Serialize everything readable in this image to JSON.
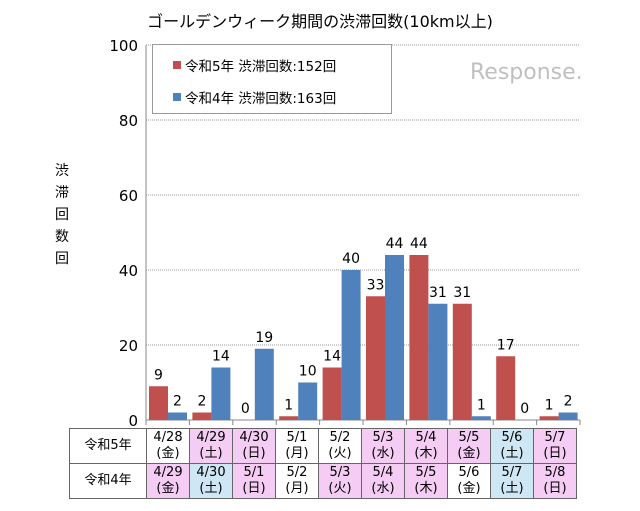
{
  "chart_data": {
    "type": "bar",
    "title": "ゴールデンウィーク期間の渋滞回数(10km以上)",
    "ylabel": "渋滞回数 回",
    "ylim": [
      0,
      100
    ],
    "yticks": [
      0,
      20,
      40,
      60,
      80,
      100
    ],
    "grid": true,
    "legend_position": "top-left",
    "series": [
      {
        "name": "令和5年 渋滞回数:152回",
        "color": "#c0504d",
        "row_label": "令和5年",
        "dates": [
          "4/28",
          "4/29",
          "4/30",
          "5/1",
          "5/2",
          "5/3",
          "5/4",
          "5/5",
          "5/6",
          "5/7"
        ],
        "weekdays": [
          "(金)",
          "(土)",
          "(日)",
          "(月)",
          "(火)",
          "(水)",
          "(木)",
          "(金)",
          "(土)",
          "(日)"
        ],
        "day_types": [
          "weekday",
          "holiday",
          "holiday",
          "weekday",
          "weekday",
          "holiday",
          "holiday",
          "holiday",
          "saturday",
          "holiday"
        ],
        "values": [
          9,
          2,
          0,
          1,
          14,
          33,
          44,
          31,
          17,
          1
        ]
      },
      {
        "name": "令和4年 渋滞回数:163回",
        "color": "#4f81bd",
        "row_label": "令和4年",
        "dates": [
          "4/29",
          "4/30",
          "5/1",
          "5/2",
          "5/3",
          "5/4",
          "5/5",
          "5/6",
          "5/7",
          "5/8"
        ],
        "weekdays": [
          "(金)",
          "(土)",
          "(日)",
          "(月)",
          "(火)",
          "(水)",
          "(木)",
          "(金)",
          "(土)",
          "(日)"
        ],
        "day_types": [
          "holiday",
          "saturday",
          "holiday",
          "weekday",
          "holiday",
          "holiday",
          "holiday",
          "weekday",
          "saturday",
          "holiday"
        ],
        "values": [
          2,
          14,
          19,
          10,
          40,
          44,
          31,
          1,
          0,
          2
        ]
      }
    ]
  },
  "colors": {
    "holiday": "#f4ccf4",
    "saturday": "#cfe6f5",
    "weekday": "#ffffff"
  },
  "watermark": "Response."
}
